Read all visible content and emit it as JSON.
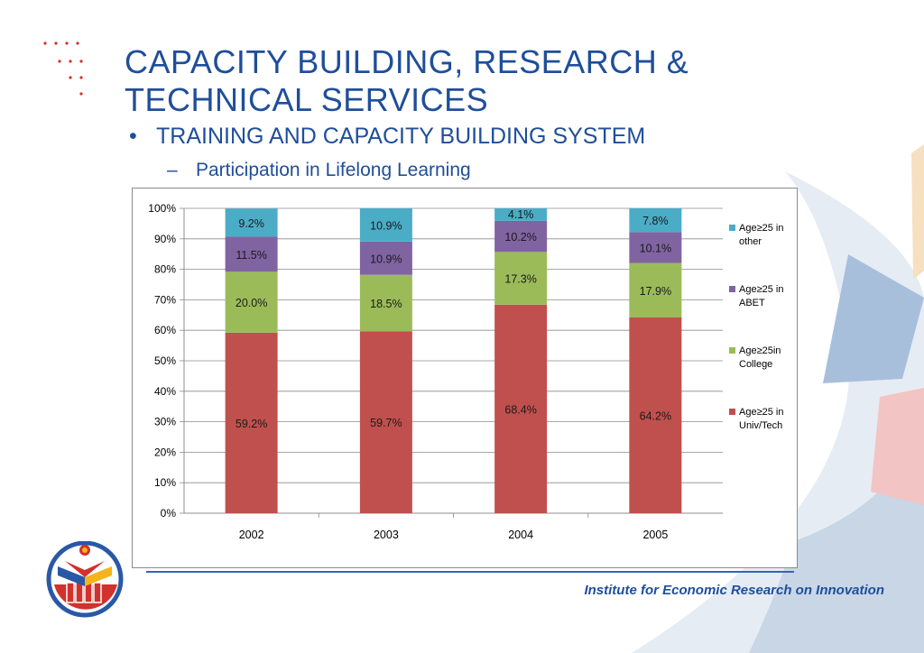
{
  "slide": {
    "title_line1": "CAPACITY BUILDING, RESEARCH &",
    "title_line2": "TECHNICAL SERVICES",
    "bullet": "TRAINING AND CAPACITY BUILDING SYSTEM",
    "bullet_marker": "•",
    "subbullet": "Participation in Lifelong Learning",
    "subbullet_marker": "–",
    "footer": "Institute for Economic Research on Innovation"
  },
  "colors": {
    "title": "#1f4e9b",
    "univ_tech": "#c0504d",
    "college": "#9bbb59",
    "abet": "#8064a2",
    "other": "#4bacc6"
  },
  "chart_data": {
    "type": "bar",
    "stacked": true,
    "categories": [
      "2002",
      "2003",
      "2004",
      "2005"
    ],
    "series": [
      {
        "name": "Age≥25 in Univ/Tech",
        "legend_lines": [
          "Age≥25 in",
          "Univ/Tech"
        ],
        "color": "#c0504d",
        "values": [
          59.2,
          59.7,
          68.4,
          64.2
        ],
        "labels": [
          "59.2%",
          "59.7%",
          "68.4%",
          "64.2%"
        ]
      },
      {
        "name": "Age≥25in College",
        "legend_lines": [
          "Age≥25in",
          "College"
        ],
        "color": "#9bbb59",
        "values": [
          20.0,
          18.5,
          17.3,
          17.9
        ],
        "labels": [
          "20.0%",
          "18.5%",
          "17.3%",
          "17.9%"
        ]
      },
      {
        "name": "Age≥25 in ABET",
        "legend_lines": [
          "Age≥25 in",
          "ABET"
        ],
        "color": "#8064a2",
        "values": [
          11.5,
          10.9,
          10.2,
          10.1
        ],
        "labels": [
          "11.5%",
          "10.9%",
          "10.2%",
          "10.1%"
        ]
      },
      {
        "name": "Age≥25 in other",
        "legend_lines": [
          "Age≥25 in",
          "other"
        ],
        "color": "#4bacc6",
        "values": [
          9.2,
          10.9,
          4.1,
          7.8
        ],
        "labels": [
          "9.2%",
          "10.9%",
          "4.1%",
          "7.8%"
        ]
      }
    ],
    "legend_order": [
      3,
      2,
      1,
      0
    ],
    "yticks": [
      "0%",
      "10%",
      "20%",
      "30%",
      "40%",
      "50%",
      "60%",
      "70%",
      "80%",
      "90%",
      "100%"
    ],
    "ylim": [
      0,
      100
    ],
    "grid": true,
    "legend_position": "right",
    "title": "",
    "xlabel": "",
    "ylabel": ""
  }
}
